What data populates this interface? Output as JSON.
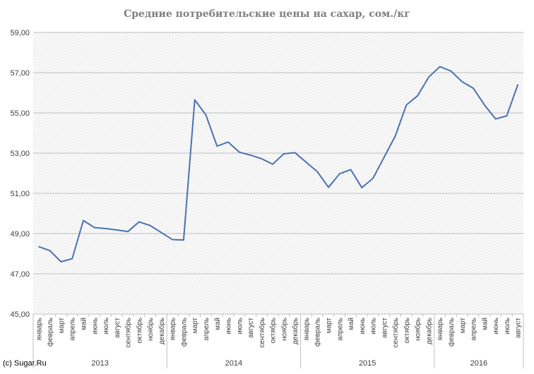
{
  "title": "Средние потребительские цены на сахар, сом./кг",
  "copyright": "(c) Sugar.Ru",
  "chart_data": {
    "type": "line",
    "title": "Средние потребительские цены на сахар, сом./кг",
    "xlabel": "",
    "ylabel": "",
    "ylim": [
      45,
      59
    ],
    "y_ticks": [
      "45,00",
      "47,00",
      "49,00",
      "51,00",
      "53,00",
      "55,00",
      "57,00",
      "59,00"
    ],
    "grid": true,
    "legend": "none",
    "line_color": "#4a72b0",
    "groups": [
      {
        "label": "2013",
        "count": 12
      },
      {
        "label": "2014",
        "count": 12
      },
      {
        "label": "2015",
        "count": 12
      },
      {
        "label": "2016",
        "count": 8
      }
    ],
    "categories": [
      "январь",
      "февраль",
      "март",
      "апрель",
      "май",
      "июнь",
      "июль",
      "август",
      "сентябрь",
      "октябрь",
      "ноябрь",
      "декабрь",
      "январь",
      "февраль",
      "март",
      "апрель",
      "май",
      "июнь",
      "июль",
      "август",
      "сентябрь",
      "октябрь",
      "ноябрь",
      "декабрь",
      "январь",
      "февраль",
      "март",
      "апрель",
      "май",
      "июнь",
      "июль",
      "август",
      "сентябрь",
      "октябрь",
      "ноябрь",
      "декабрь",
      "январь",
      "февраль",
      "март",
      "апрель",
      "май",
      "июнь",
      "июль",
      "август"
    ],
    "values": [
      48.35,
      48.15,
      47.6,
      47.75,
      49.65,
      49.3,
      49.25,
      49.18,
      49.1,
      49.58,
      49.4,
      49.05,
      48.7,
      48.68,
      55.65,
      54.9,
      53.35,
      53.55,
      53.05,
      52.9,
      52.72,
      52.45,
      52.97,
      53.02,
      52.55,
      52.08,
      51.3,
      51.97,
      52.18,
      51.28,
      51.75,
      52.8,
      53.85,
      55.4,
      55.85,
      56.78,
      57.3,
      57.08,
      56.55,
      56.23,
      55.4,
      54.7,
      54.85,
      56.4
    ]
  }
}
